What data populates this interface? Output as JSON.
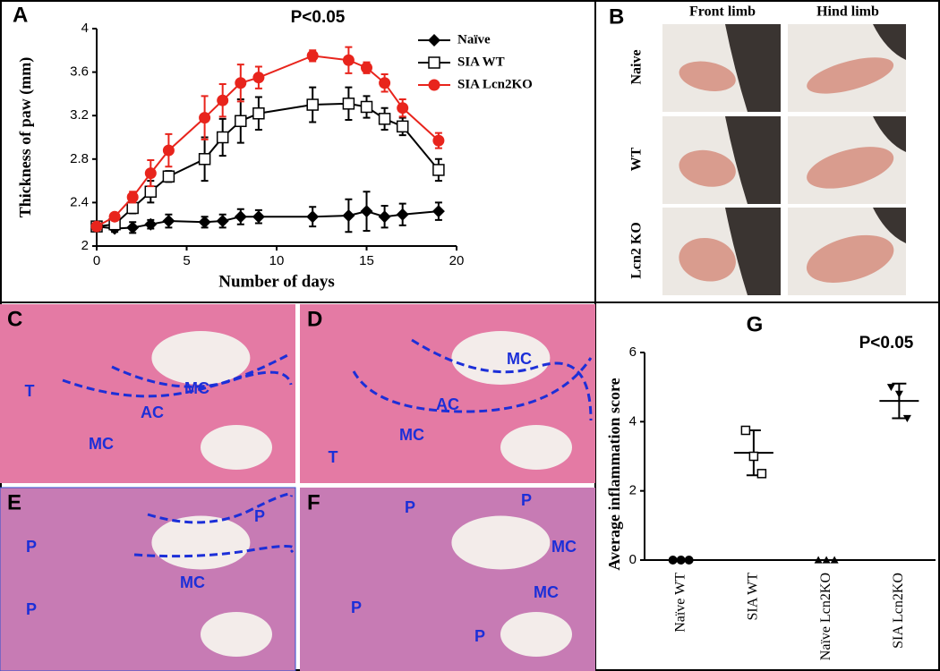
{
  "chart_data": [
    {
      "type": "line",
      "panel": "A",
      "annotation": "P<0.05",
      "xlabel": "Number of days",
      "ylabel": "Thickness of paw (mm)",
      "x": [
        0,
        1,
        2,
        3,
        4,
        6,
        7,
        8,
        9,
        12,
        14,
        15,
        16,
        17,
        19
      ],
      "series": [
        {
          "name": "Naïve",
          "color": "#000000",
          "marker": "diamond",
          "values": [
            2.18,
            2.16,
            2.17,
            2.2,
            2.23,
            2.22,
            2.23,
            2.27,
            2.27,
            2.27,
            2.28,
            2.32,
            2.27,
            2.29,
            2.32
          ],
          "errors": [
            0.04,
            0.03,
            0.05,
            0.04,
            0.06,
            0.05,
            0.06,
            0.07,
            0.06,
            0.09,
            0.15,
            0.18,
            0.1,
            0.1,
            0.08
          ]
        },
        {
          "name": "SIA WT",
          "color": "#000000",
          "marker": "square",
          "values": [
            2.18,
            2.2,
            2.35,
            2.5,
            2.64,
            2.8,
            3.0,
            3.15,
            3.22,
            3.3,
            3.31,
            3.28,
            3.17,
            3.1,
            2.7
          ],
          "errors": [
            0.02,
            0.03,
            0.05,
            0.1,
            0.05,
            0.2,
            0.17,
            0.2,
            0.15,
            0.16,
            0.15,
            0.1,
            0.1,
            0.08,
            0.1
          ]
        },
        {
          "name": "SIA Lcn2KO",
          "color": "#e8241c",
          "marker": "circle",
          "values": [
            2.18,
            2.27,
            2.45,
            2.67,
            2.88,
            3.18,
            3.34,
            3.5,
            3.55,
            3.75,
            3.71,
            3.64,
            3.5,
            3.27,
            2.97
          ],
          "errors": [
            0.02,
            0.02,
            0.05,
            0.12,
            0.15,
            0.2,
            0.15,
            0.17,
            0.1,
            0.05,
            0.12,
            0.05,
            0.08,
            0.08,
            0.07
          ]
        }
      ],
      "xlim": [
        0,
        20
      ],
      "xticks": [
        0,
        5,
        10,
        15,
        20
      ],
      "ylim": [
        2,
        4
      ],
      "yticks": [
        2,
        2.4,
        2.8,
        3.2,
        3.6,
        4
      ],
      "legend": "upper right"
    },
    {
      "type": "dot",
      "panel": "G",
      "annotation": "P<0.05",
      "ylabel": "Average inflammation score",
      "categories": [
        "Naïve WT",
        "SIA WT",
        "Naïve Lcn2KO",
        "SIA Lcn2KO"
      ],
      "markers": [
        "circle",
        "square",
        "triangle",
        "triangle-down"
      ],
      "points": [
        [
          0,
          0,
          0
        ],
        [
          3.75,
          3.0,
          2.5
        ],
        [
          0,
          0,
          0
        ],
        [
          5.0,
          4.8,
          4.1
        ]
      ],
      "means": [
        0,
        3.1,
        0,
        4.6
      ],
      "sd": [
        0,
        0.65,
        0,
        0.5
      ],
      "ylim": [
        0,
        6
      ],
      "yticks": [
        0,
        2,
        4,
        6
      ]
    }
  ],
  "panel_B": {
    "label": "B",
    "columns": [
      "Front limb",
      "Hind limb"
    ],
    "rows": [
      "Naive",
      "WT",
      "Lcn2 KO"
    ]
  },
  "histology": [
    {
      "label": "C",
      "marks": [
        "T",
        "MC",
        "AC",
        "MC"
      ]
    },
    {
      "label": "D",
      "marks": [
        "MC",
        "AC",
        "T",
        "MC"
      ]
    },
    {
      "label": "E",
      "marks": [
        "P",
        "P",
        "P",
        "MC"
      ]
    },
    {
      "label": "F",
      "marks": [
        "P",
        "P",
        "MC",
        "MC",
        "P",
        "P"
      ]
    }
  ]
}
